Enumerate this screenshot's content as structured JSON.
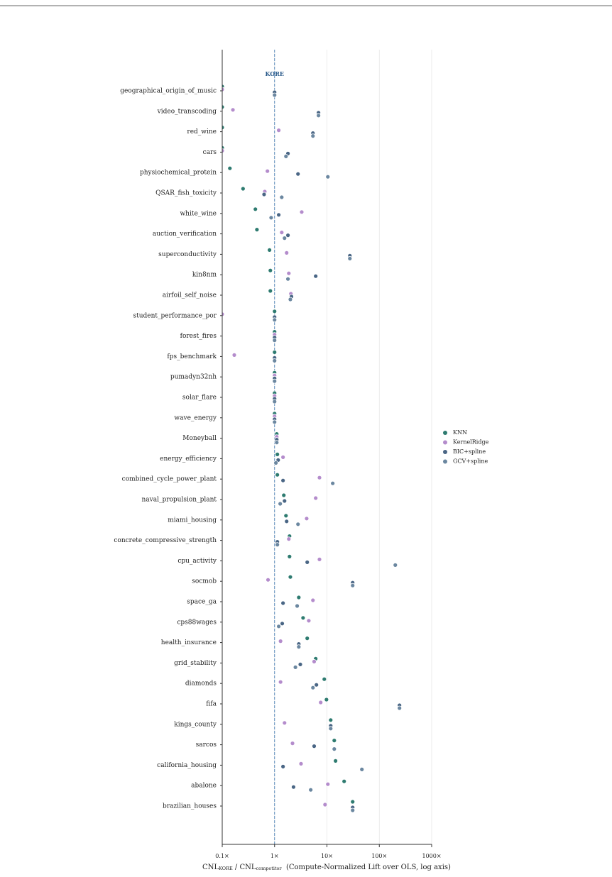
{
  "chart_data": {
    "type": "dot",
    "annotation": "KORE",
    "xlabel_parts": [
      "CNL",
      "KORE",
      " / CNL",
      "competitor",
      "  (Compute-Normalized Lift over OLS, log axis)"
    ],
    "xscale": "log",
    "xlim": [
      0.1,
      1000
    ],
    "xticks": [
      {
        "value": 0.1,
        "label": "0.1×"
      },
      {
        "value": 1,
        "label": "1×"
      },
      {
        "value": 10,
        "label": "10×"
      },
      {
        "value": 100,
        "label": "100×"
      },
      {
        "value": 1000,
        "label": "1000×"
      }
    ],
    "reference_line": 1,
    "grid": true,
    "legend": "right",
    "categories": [
      "geographical_origin_of_music",
      "video_transcoding",
      "red_wine",
      "cars",
      "physiochemical_protein",
      "QSAR_fish_toxicity",
      "white_wine",
      "auction_verification",
      "superconductivity",
      "kin8nm",
      "airfoil_self_noise",
      "student_performance_por",
      "forest_fires",
      "fps_benchmark",
      "pumadyn32nh",
      "solar_flare",
      "wave_energy",
      "Moneyball",
      "energy_efficiency",
      "combined_cycle_power_plant",
      "naval_propulsion_plant",
      "miami_housing",
      "concrete_compressive_strength",
      "cpu_activity",
      "socmob",
      "space_ga",
      "cps88wages",
      "health_insurance",
      "grid_stability",
      "diamonds",
      "fifa",
      "kings_county",
      "sarcos",
      "california_housing",
      "abalone",
      "brazilian_houses"
    ],
    "series": [
      {
        "name": "KNN",
        "color": "#2e7b70",
        "values": [
          0.1,
          0.1,
          0.1,
          0.1,
          0.14,
          0.25,
          0.43,
          0.46,
          0.8,
          0.83,
          0.83,
          1,
          1,
          1,
          1,
          1,
          1,
          1.1,
          1.13,
          1.13,
          1.5,
          1.65,
          1.93,
          1.93,
          2.0,
          2.9,
          3.5,
          4.2,
          6.1,
          8.9,
          9.8,
          11.8,
          13.8,
          14.6,
          21.3,
          31
        ]
      },
      {
        "name": "KernelRidge",
        "color": "#b48ccc",
        "values": [
          0.1,
          0.16,
          1.2,
          0.1,
          0.73,
          0.65,
          3.3,
          1.37,
          1.7,
          1.87,
          2.05,
          0.1,
          1,
          0.17,
          1,
          1,
          1,
          1.1,
          1.45,
          7.2,
          6.1,
          4.1,
          1.87,
          7.2,
          0.75,
          5.4,
          4.5,
          1.3,
          5.7,
          1.3,
          7.6,
          1.55,
          2.2,
          3.2,
          10.4,
          9.2
        ]
      },
      {
        "name": "BIC+spline",
        "color": "#4a6685",
        "values": [
          1,
          6.9,
          5.4,
          1.8,
          2.8,
          0.63,
          1.2,
          1.8,
          27.4,
          6.1,
          2.1,
          1,
          1,
          1,
          1,
          1,
          1,
          1.1,
          1.17,
          1.45,
          1.55,
          1.7,
          1.13,
          4.2,
          31,
          1.45,
          1.4,
          2.9,
          3.1,
          6.3,
          243,
          11.8,
          5.7,
          1.45,
          2.3,
          31
        ]
      },
      {
        "name": "GCV+spline",
        "color": "#6b87a0",
        "values": [
          1,
          6.9,
          5.4,
          1.65,
          10.4,
          1.37,
          0.86,
          1.55,
          27.4,
          1.8,
          2.0,
          1,
          1,
          1,
          1,
          1,
          1,
          1.1,
          1.06,
          12.9,
          1.28,
          2.8,
          1.13,
          202,
          31,
          2.7,
          1.2,
          2.9,
          2.5,
          5.4,
          243,
          11.8,
          13.8,
          46.5,
          4.9,
          31
        ]
      }
    ]
  }
}
